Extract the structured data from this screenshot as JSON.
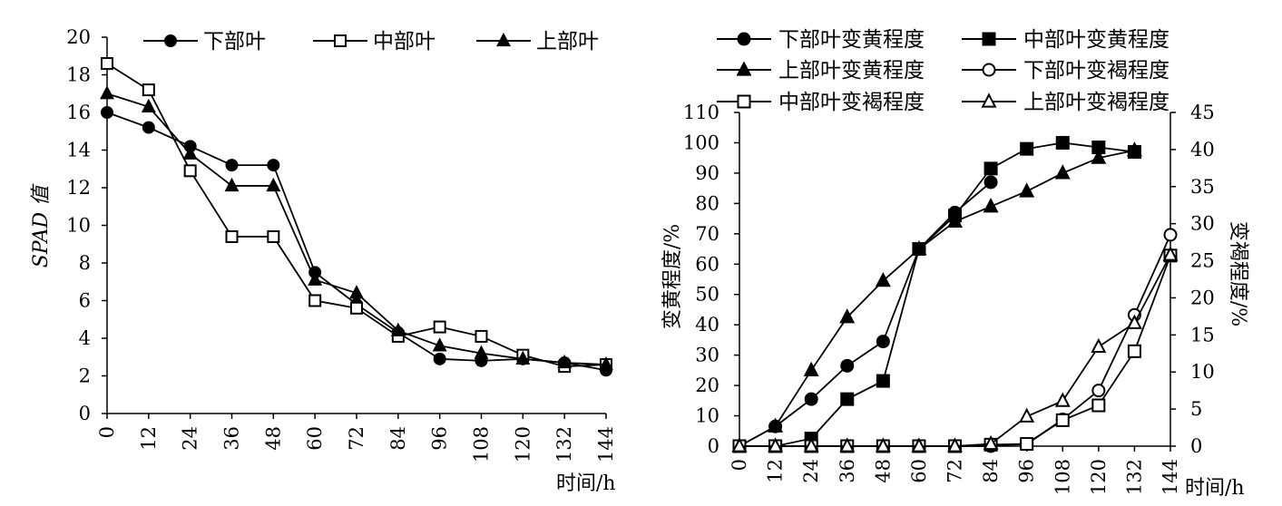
{
  "chart_data": [
    {
      "type": "line",
      "x": [
        0,
        12,
        24,
        36,
        48,
        60,
        72,
        84,
        96,
        108,
        120,
        132,
        144
      ],
      "xlabel": "时间/h",
      "ylabel": "SPAD 值",
      "ylim": [
        0,
        20
      ],
      "yticks": [
        0,
        2,
        4,
        6,
        8,
        10,
        12,
        14,
        16,
        18,
        20
      ],
      "legend": "top",
      "series": [
        {
          "name": "下部叶",
          "marker": "circle",
          "filled": true,
          "values": [
            16.0,
            15.2,
            14.2,
            13.2,
            13.2,
            7.5,
            5.8,
            4.3,
            2.9,
            2.8,
            2.9,
            2.7,
            2.3
          ]
        },
        {
          "name": "中部叶",
          "marker": "square",
          "filled": false,
          "values": [
            18.6,
            17.2,
            12.9,
            9.4,
            9.4,
            6.0,
            5.6,
            4.1,
            4.6,
            4.1,
            3.1,
            2.5,
            2.6
          ]
        },
        {
          "name": "上部叶",
          "marker": "triangle",
          "filled": true,
          "values": [
            17.0,
            16.3,
            13.8,
            12.1,
            12.1,
            7.1,
            6.4,
            4.4,
            3.6,
            3.2,
            2.9,
            2.7,
            2.6
          ]
        }
      ]
    },
    {
      "type": "line",
      "x": [
        0,
        12,
        24,
        36,
        48,
        60,
        72,
        84,
        96,
        108,
        120,
        132,
        144
      ],
      "xlabel": "时间/h",
      "ylabel": "变黄程度/%",
      "y2label": "变褐程度/%",
      "ylim": [
        0,
        110
      ],
      "y2lim": [
        0,
        45
      ],
      "yticks": [
        0,
        10,
        20,
        30,
        40,
        50,
        60,
        70,
        80,
        90,
        100,
        110
      ],
      "y2ticks": [
        0,
        5,
        10,
        15,
        20,
        25,
        30,
        35,
        40,
        45
      ],
      "legend": "top",
      "series": [
        {
          "name": "下部叶变黄程度",
          "marker": "circle",
          "filled": true,
          "axis": "left",
          "x": [
            0,
            12,
            24,
            36,
            48,
            60,
            72,
            84
          ],
          "values": [
            0,
            6.5,
            15.5,
            26.5,
            34.5,
            65,
            77,
            87
          ]
        },
        {
          "name": "中部叶变黄程度",
          "marker": "square",
          "filled": true,
          "axis": "left",
          "x": [
            0,
            12,
            24,
            36,
            48,
            60,
            72,
            84,
            96,
            108,
            120,
            132
          ],
          "values": [
            0,
            0,
            2.5,
            15.5,
            21.5,
            65,
            76,
            91.5,
            98,
            100,
            98.5,
            97
          ]
        },
        {
          "name": "上部叶变黄程度",
          "marker": "triangle",
          "filled": true,
          "axis": "left",
          "x": [
            0,
            12,
            24,
            36,
            48,
            60,
            72,
            84,
            96,
            108,
            120,
            132
          ],
          "values": [
            0,
            6.5,
            25,
            42.5,
            54.5,
            65,
            74,
            79,
            84,
            90,
            95,
            97.5
          ]
        },
        {
          "name": "下部叶变褐程度",
          "marker": "circle",
          "filled": false,
          "axis": "right",
          "x": [
            0,
            12,
            24,
            36,
            48,
            60,
            72,
            84,
            96,
            108,
            120,
            132,
            144
          ],
          "values": [
            0,
            0,
            0,
            0,
            0,
            0,
            0,
            0,
            0.3,
            3.6,
            7.5,
            17.7,
            28.5
          ]
        },
        {
          "name": "中部叶变褐程度",
          "marker": "square",
          "filled": false,
          "axis": "right",
          "x": [
            0,
            12,
            24,
            36,
            48,
            60,
            72,
            84,
            96,
            108,
            120,
            132,
            144
          ],
          "values": [
            0,
            0,
            0,
            0,
            0,
            0,
            0,
            0.2,
            0.3,
            3.5,
            5.5,
            12.8,
            25.7
          ]
        },
        {
          "name": "上部叶变褐程度",
          "marker": "triangle",
          "filled": false,
          "axis": "right",
          "x": [
            0,
            12,
            24,
            36,
            48,
            60,
            72,
            84,
            96,
            108,
            120,
            132,
            144
          ],
          "values": [
            0,
            0,
            0,
            0,
            0,
            0,
            0,
            0.3,
            4.0,
            6.1,
            13.4,
            16.6,
            25.8
          ]
        }
      ]
    }
  ]
}
